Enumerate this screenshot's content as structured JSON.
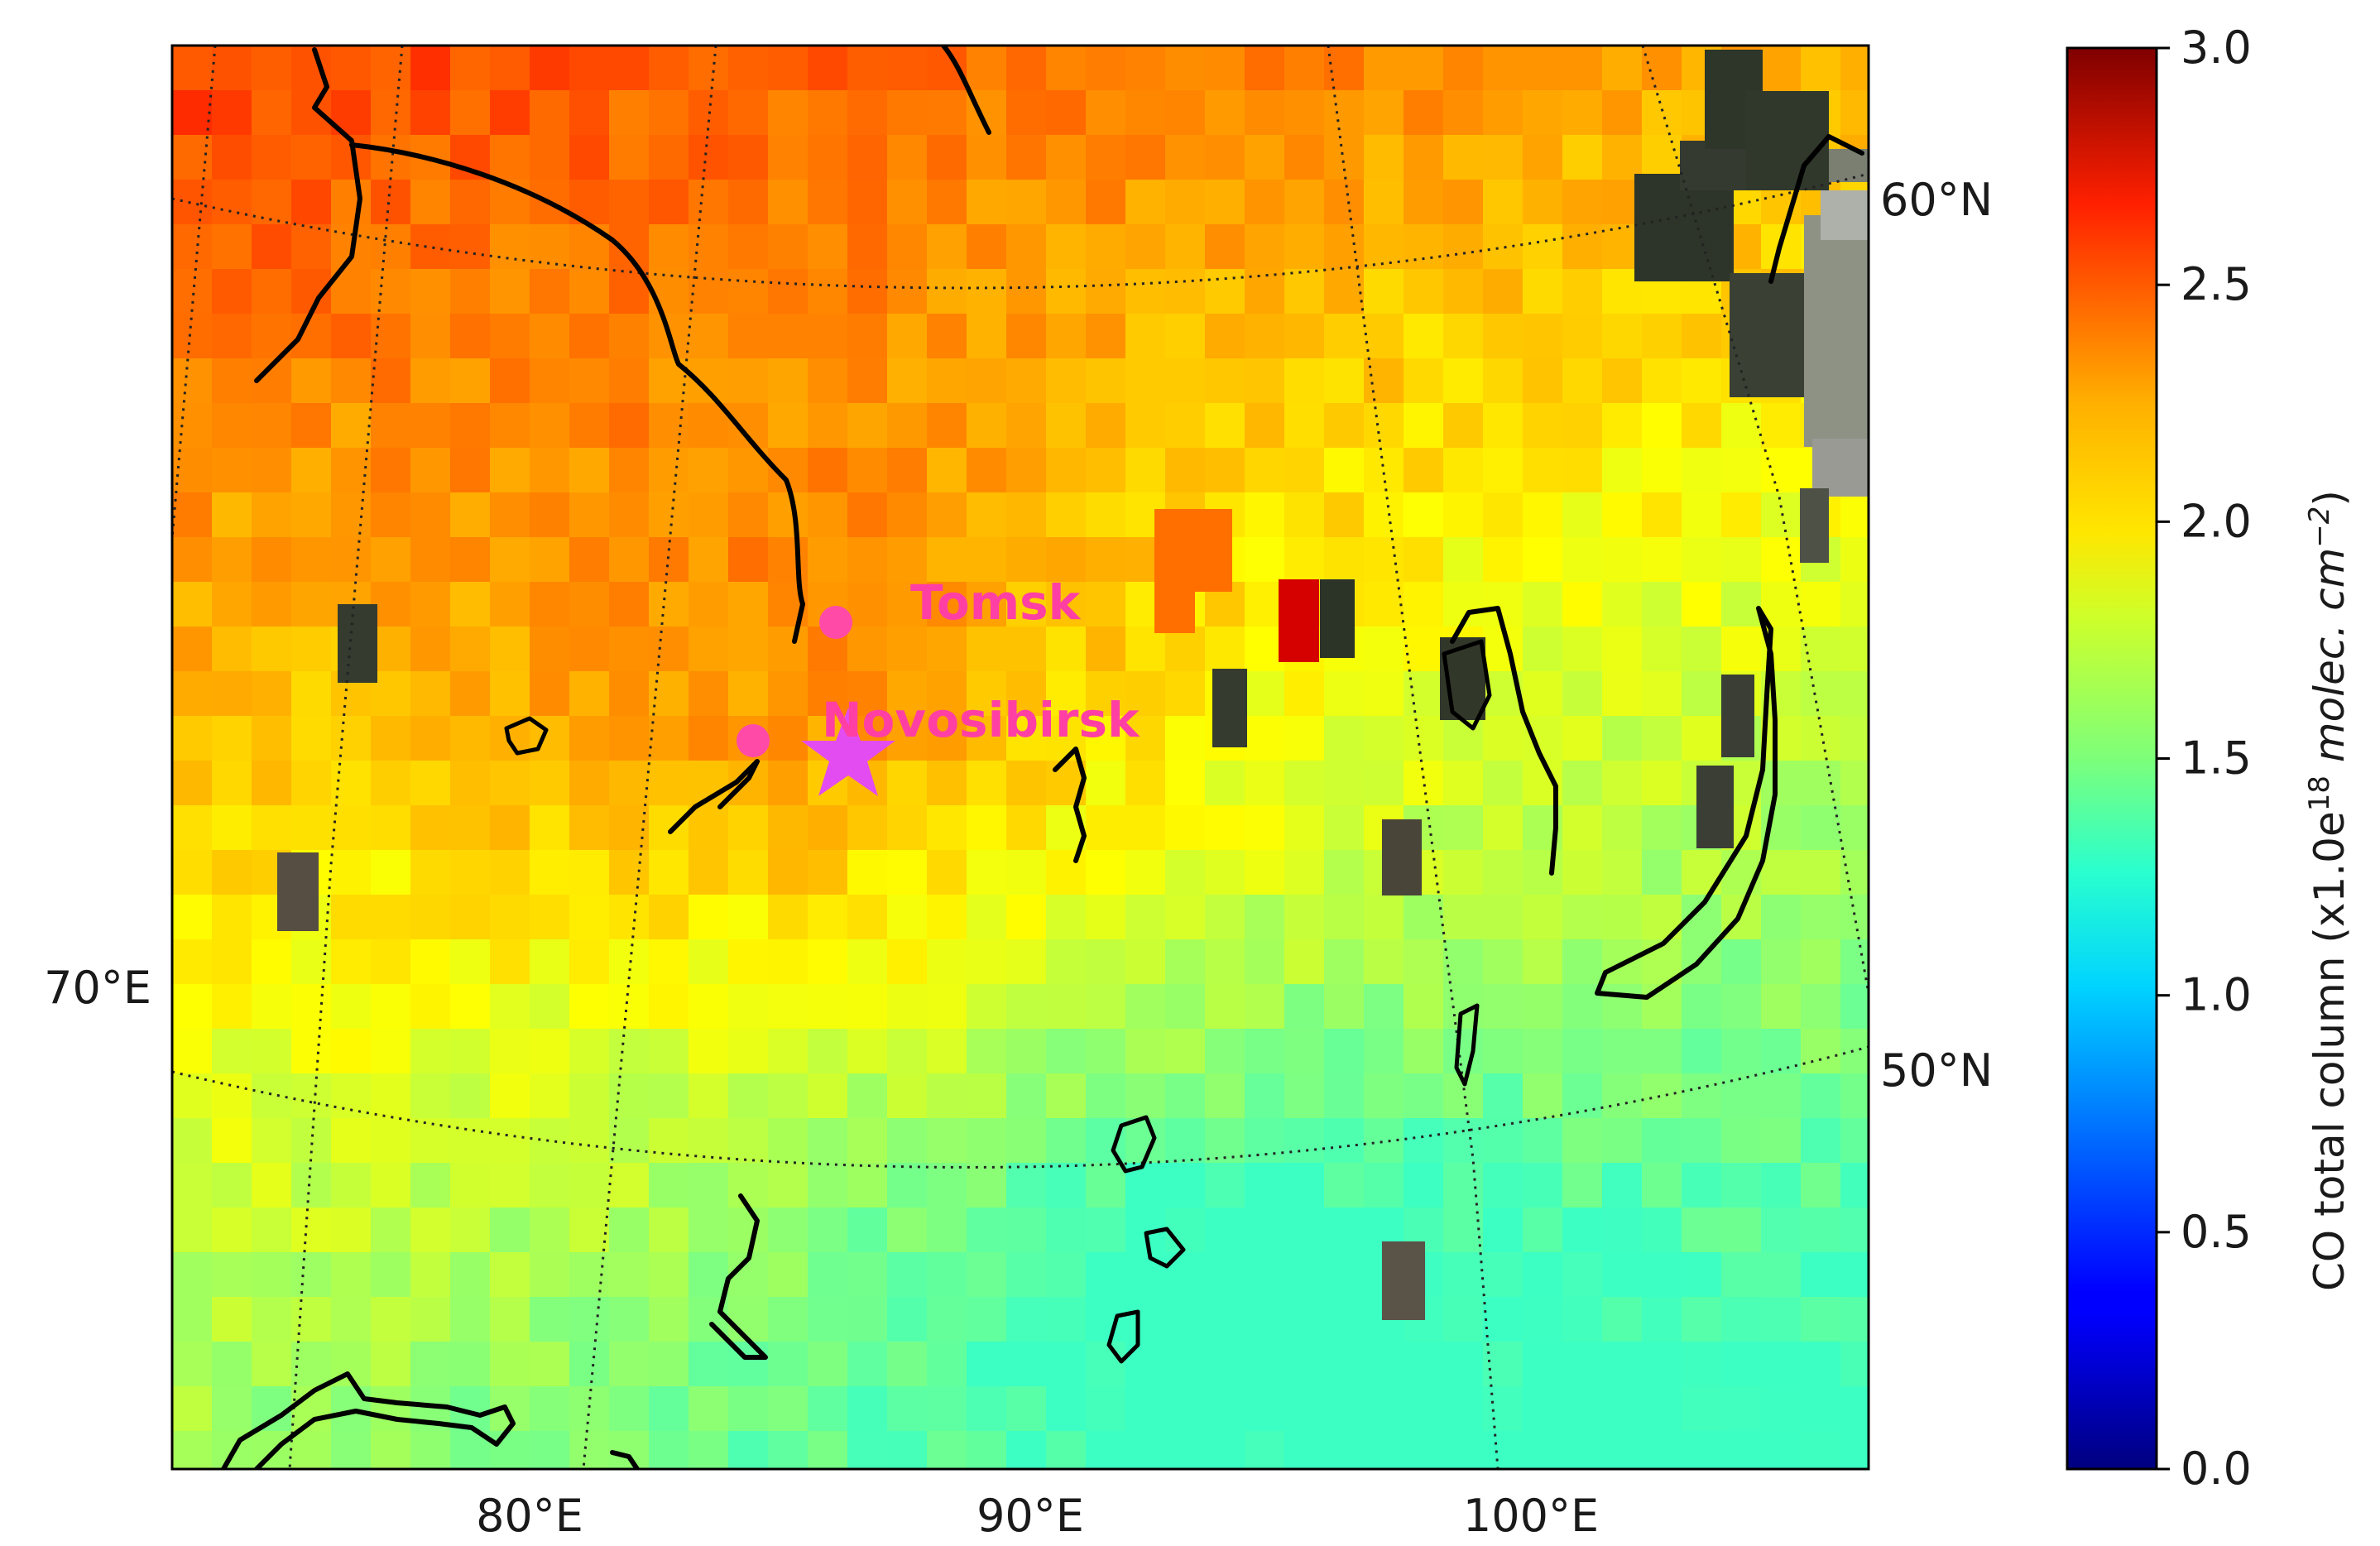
{
  "map": {
    "projection": "conic",
    "lon_range": [
      72,
      108
    ],
    "lat_range": [
      44,
      63
    ],
    "lon_labels": [
      "80°E",
      "90°E",
      "100°E"
    ],
    "left_labels": [
      "70°E"
    ],
    "lat_labels": [
      "60°N",
      "50°N"
    ],
    "graticule_lons": [
      70,
      80,
      90,
      100
    ],
    "graticule_lats": [
      50,
      60
    ],
    "field": "CO total column",
    "field_units": "x1.0e18 molec. cm^-2",
    "regions": {
      "northwest_high": "2.3–2.5",
      "central_orange": "2.1–2.3",
      "south_green": "1.4–1.7",
      "missing_cells": "dark (cloud / no retrieval)"
    }
  },
  "markers": [
    {
      "name": "Tomsk",
      "lon": 84.95,
      "lat": 56.5,
      "symbol": "circle",
      "color": "#ff4aa8"
    },
    {
      "name": "Novosibirsk",
      "lon": 82.93,
      "lat": 55.03,
      "symbol": "circle",
      "color": "#ff4aa8"
    },
    {
      "name": "star",
      "lon": 85.4,
      "lat": 55.0,
      "symbol": "star",
      "color": "#e34cf0"
    }
  ],
  "labels": {
    "tomsk": "Tomsk",
    "novosibirsk": "Novosibirsk",
    "lon_80": "80°E",
    "lon_90": "90°E",
    "lon_100": "100°E",
    "lon_70": "70°E",
    "lat_60": "60°N",
    "lat_50": "50°N"
  },
  "colorbar": {
    "title_main": "CO total column (x1.0e",
    "title_exp": "18",
    "title_units": " molec. cm",
    "title_units_exp": "−2",
    "title_close": ")",
    "ticks": [
      "0.0",
      "0.5",
      "1.0",
      "1.5",
      "2.0",
      "2.5",
      "3.0"
    ],
    "min": 0.0,
    "max": 3.0,
    "colormap": "jet"
  },
  "colors": {
    "high": "#f28c2a",
    "mid": "#f5c233",
    "yellow": "#e8ee3e",
    "green": "#9ee07a",
    "cyan": "#3fe8c0",
    "missing": "#3b4236",
    "rivers": "#000000"
  }
}
